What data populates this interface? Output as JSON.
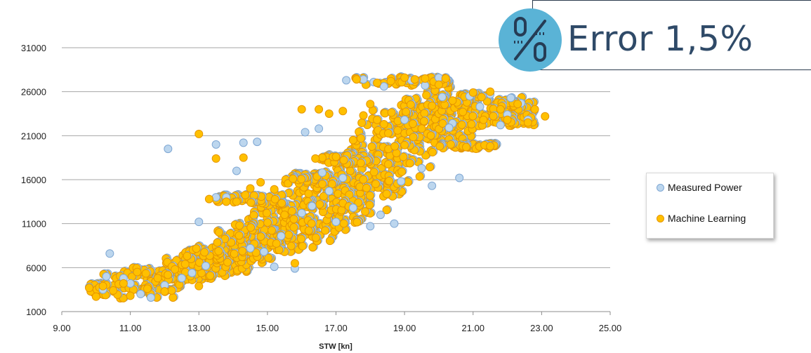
{
  "chart_data": {
    "type": "scatter",
    "xlabel": "STW [kn]",
    "ylabel": "",
    "xlim": [
      9.0,
      25.0
    ],
    "ylim": [
      1000,
      31000
    ],
    "x_ticks": [
      "9.00",
      "11.00",
      "13.00",
      "15.00",
      "17.00",
      "19.00",
      "21.00",
      "23.00",
      "25.00"
    ],
    "y_ticks": [
      "1000",
      "6000",
      "11000",
      "16000",
      "21000",
      "26000",
      "31000"
    ],
    "grid": "horizontal",
    "legend_position": "right",
    "series": [
      {
        "name": "Measured Power",
        "color": "#bcd6ee",
        "edge_color": "#7fa7d3",
        "points": [
          [
            9.8,
            3800
          ],
          [
            10.2,
            3500
          ],
          [
            10.4,
            7600
          ],
          [
            10.3,
            5000
          ],
          [
            10.8,
            4800
          ],
          [
            11.0,
            4200
          ],
          [
            11.3,
            3000
          ],
          [
            11.6,
            2600
          ],
          [
            12.0,
            4000
          ],
          [
            12.1,
            19500
          ],
          [
            12.5,
            4800
          ],
          [
            12.8,
            5400
          ],
          [
            13.0,
            11200
          ],
          [
            13.2,
            6200
          ],
          [
            13.5,
            14000
          ],
          [
            13.5,
            20000
          ],
          [
            13.8,
            14000
          ],
          [
            14.1,
            17000
          ],
          [
            14.3,
            20200
          ],
          [
            14.7,
            20300
          ],
          [
            14.5,
            8200
          ],
          [
            14.9,
            7800
          ],
          [
            15.2,
            6100
          ],
          [
            15.4,
            9600
          ],
          [
            15.8,
            5900
          ],
          [
            16.0,
            12200
          ],
          [
            16.1,
            21400
          ],
          [
            16.3,
            13000
          ],
          [
            16.5,
            21800
          ],
          [
            16.6,
            16800
          ],
          [
            16.8,
            14700
          ],
          [
            17.0,
            11200
          ],
          [
            17.2,
            16200
          ],
          [
            17.5,
            12800
          ],
          [
            17.8,
            27400
          ],
          [
            18.0,
            10700
          ],
          [
            18.3,
            12000
          ],
          [
            18.4,
            26600
          ],
          [
            18.7,
            11000
          ],
          [
            18.9,
            15800
          ],
          [
            19.0,
            22800
          ],
          [
            19.2,
            27300
          ],
          [
            19.5,
            17300
          ],
          [
            19.8,
            15300
          ],
          [
            20.0,
            27600
          ],
          [
            20.1,
            25400
          ],
          [
            20.4,
            22400
          ],
          [
            20.6,
            16200
          ],
          [
            20.9,
            25500
          ],
          [
            21.2,
            24300
          ],
          [
            21.5,
            25700
          ],
          [
            21.8,
            22200
          ],
          [
            22.1,
            25300
          ],
          [
            22.4,
            24700
          ],
          [
            22.6,
            22800
          ],
          [
            22.0,
            23400
          ],
          [
            17.3,
            27300
          ],
          [
            18.1,
            27100
          ],
          [
            19.6,
            26700
          ],
          [
            20.3,
            21900
          ]
        ]
      },
      {
        "name": "Machine Learning",
        "color": "#ffc000",
        "edge_color": "#e69600",
        "points": [
          [
            9.8,
            3700
          ],
          [
            10.0,
            2700
          ],
          [
            10.2,
            3900
          ],
          [
            10.5,
            3400
          ],
          [
            10.8,
            4200
          ],
          [
            11.0,
            2800
          ],
          [
            11.2,
            5500
          ],
          [
            11.5,
            3600
          ],
          [
            11.8,
            4800
          ],
          [
            12.0,
            3300
          ],
          [
            12.3,
            5800
          ],
          [
            12.6,
            6400
          ],
          [
            13.0,
            3900
          ],
          [
            13.0,
            21200
          ],
          [
            13.3,
            13800
          ],
          [
            13.5,
            18400
          ],
          [
            13.8,
            13500
          ],
          [
            14.1,
            13500
          ],
          [
            14.3,
            18500
          ],
          [
            14.5,
            15000
          ],
          [
            14.8,
            15700
          ],
          [
            15.2,
            14900
          ],
          [
            15.5,
            12000
          ],
          [
            15.8,
            6500
          ],
          [
            16.0,
            24000
          ],
          [
            16.2,
            14400
          ],
          [
            16.5,
            24000
          ],
          [
            16.6,
            18500
          ],
          [
            16.8,
            23500
          ],
          [
            17.0,
            18600
          ],
          [
            17.2,
            23800
          ],
          [
            17.5,
            20500
          ],
          [
            17.6,
            27400
          ],
          [
            17.8,
            23300
          ],
          [
            18.0,
            24600
          ],
          [
            18.2,
            27000
          ],
          [
            18.4,
            22300
          ],
          [
            18.6,
            27200
          ],
          [
            18.8,
            21600
          ],
          [
            19.0,
            27600
          ],
          [
            19.3,
            27400
          ],
          [
            19.6,
            27500
          ],
          [
            19.8,
            24400
          ],
          [
            20.0,
            26800
          ],
          [
            20.2,
            27500
          ],
          [
            20.4,
            25000
          ],
          [
            20.7,
            23700
          ],
          [
            21.0,
            25900
          ],
          [
            21.3,
            22800
          ],
          [
            21.5,
            26000
          ],
          [
            21.8,
            24000
          ],
          [
            22.0,
            22800
          ],
          [
            22.3,
            24600
          ],
          [
            22.6,
            22500
          ],
          [
            22.8,
            24000
          ],
          [
            23.1,
            23200
          ],
          [
            21.5,
            19800
          ],
          [
            20.8,
            19700
          ],
          [
            19.5,
            21800
          ],
          [
            16.4,
            18400
          ]
        ]
      }
    ]
  },
  "error_panel": {
    "text": "Error 1,5%",
    "icon": "percent-badge-icon",
    "badge_color": "#5ab3d6",
    "glyph_color": "#263c55"
  }
}
